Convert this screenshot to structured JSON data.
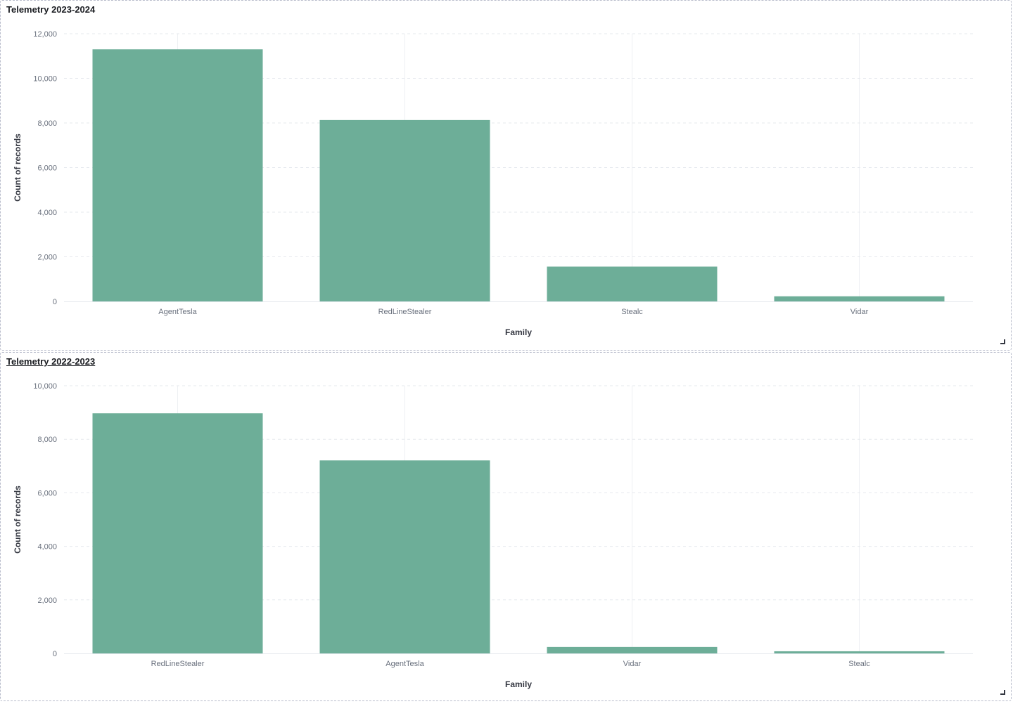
{
  "chart_data": [
    {
      "type": "bar",
      "title": "Telemetry 2023-2024",
      "xlabel": "Family",
      "ylabel": "Count of records",
      "categories": [
        "AgentTesla",
        "RedLineStealer",
        "Stealc",
        "Vidar"
      ],
      "values": [
        11300,
        8130,
        1560,
        230
      ],
      "ylim": [
        0,
        12000
      ],
      "yticks": [
        0,
        2000,
        4000,
        6000,
        8000,
        10000,
        12000
      ],
      "ytick_labels": [
        "0",
        "2,000",
        "4,000",
        "6,000",
        "8,000",
        "10,000",
        "12,000"
      ],
      "grid": true,
      "color": "#6dae98"
    },
    {
      "type": "bar",
      "title": "Telemetry 2022-2023",
      "xlabel": "Family",
      "ylabel": "Count of records",
      "categories": [
        "RedLineStealer",
        "AgentTesla",
        "Vidar",
        "Stealc"
      ],
      "values": [
        8970,
        7210,
        240,
        80
      ],
      "ylim": [
        0,
        10000
      ],
      "yticks": [
        0,
        2000,
        4000,
        6000,
        8000,
        10000
      ],
      "ytick_labels": [
        "0",
        "2,000",
        "4,000",
        "6,000",
        "8,000",
        "10,000"
      ],
      "grid": true,
      "color": "#6dae98"
    }
  ]
}
